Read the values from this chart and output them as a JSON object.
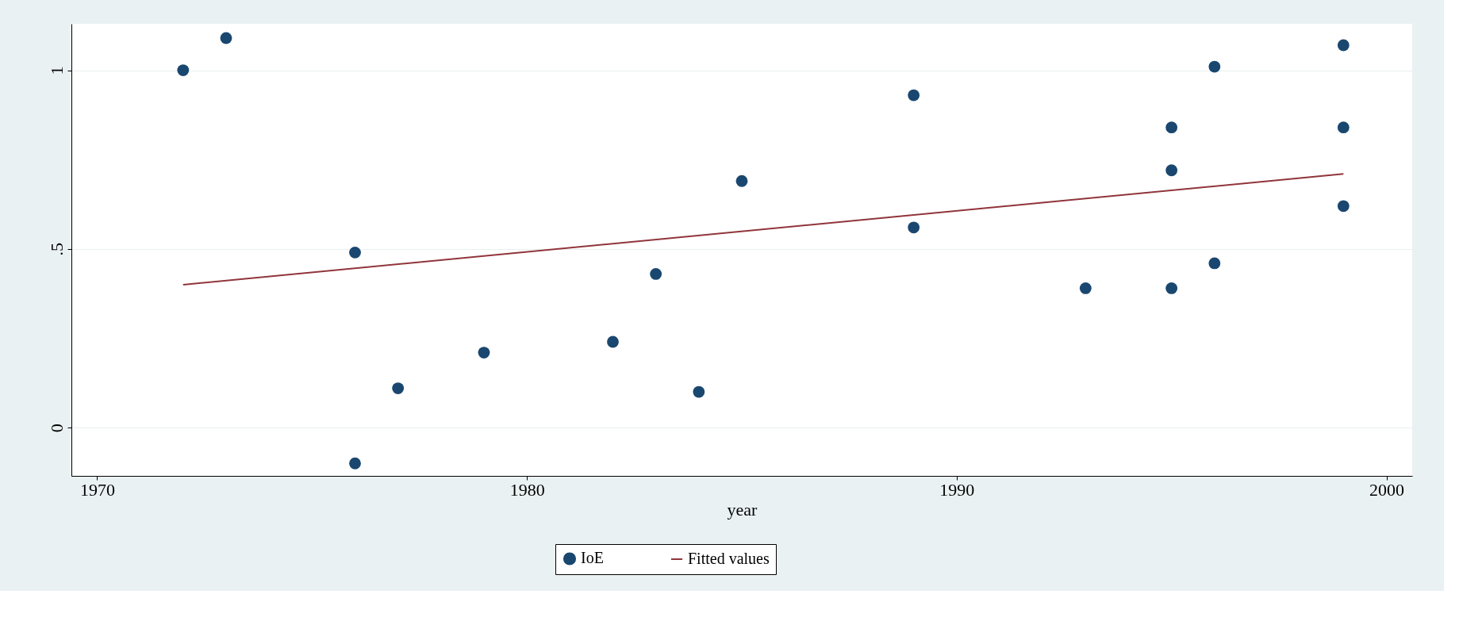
{
  "chart_data": {
    "type": "scatter",
    "xlabel": "year",
    "xlim": [
      1969.4,
      2000.6
    ],
    "xticks": [
      1970,
      1980,
      1990,
      2000
    ],
    "ylim": [
      -0.135,
      1.13
    ],
    "yticks": [
      0,
      {
        "value": 0.5,
        "label": ".5"
      },
      1
    ],
    "grid": "y",
    "legend": "bottom",
    "series": [
      {
        "name": "IoE",
        "marker": "circle",
        "color": "#1a476f",
        "x": [
          1972,
          1973,
          1976,
          1976,
          1977,
          1979,
          1982,
          1983,
          1984,
          1985,
          1989,
          1989,
          1993,
          1995,
          1995,
          1995,
          1996,
          1996,
          1999,
          1999,
          1999
        ],
        "values": [
          1.0,
          1.09,
          0.49,
          -0.1,
          0.11,
          0.21,
          0.24,
          0.43,
          0.1,
          0.69,
          0.93,
          0.56,
          0.39,
          0.84,
          0.72,
          0.39,
          1.01,
          0.46,
          1.07,
          0.84,
          0.62
        ]
      },
      {
        "name": "Fitted values",
        "type": "line",
        "color": "#90353b",
        "x": [
          1972,
          1999
        ],
        "values": [
          0.4,
          0.71
        ]
      }
    ]
  }
}
